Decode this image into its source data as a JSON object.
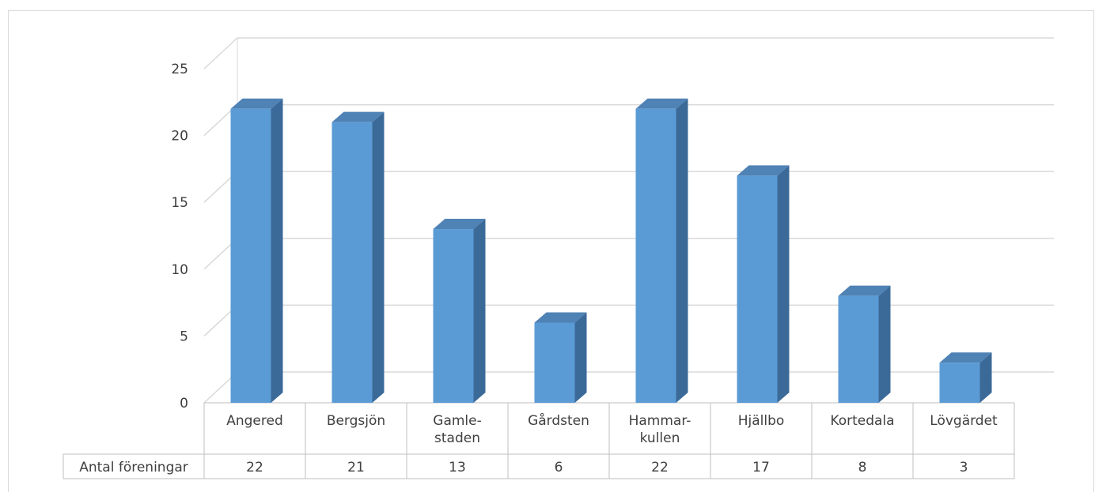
{
  "chart_data": {
    "type": "bar",
    "categories": [
      "Angered",
      "Bergsjön",
      "Gamle-\nstaden",
      "Gårdsten",
      "Hammar-\nkullen",
      "Hjällbo",
      "Kortedala",
      "Lövgärdet"
    ],
    "series": [
      {
        "name": "Antal föreningar",
        "values": [
          22,
          21,
          13,
          6,
          22,
          17,
          8,
          3
        ]
      }
    ],
    "ylim": [
      0,
      25
    ],
    "yticks": [
      0,
      5,
      10,
      15,
      20,
      25
    ],
    "grid": true,
    "data_table": true,
    "style": "3d-column",
    "colors": {
      "bar_front": "#5b9bd5",
      "bar_side": "#3b6a99",
      "bar_top": "#4f82b5",
      "grid": "#d9d9d9",
      "table_border": "#bfbfbf"
    }
  }
}
